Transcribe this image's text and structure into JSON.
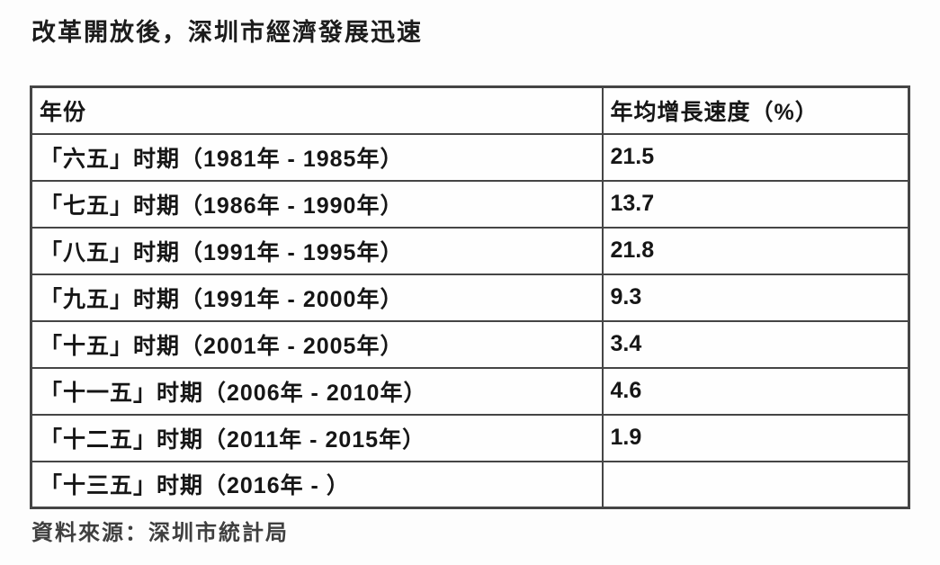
{
  "page": {
    "title": "改革開放後，深圳市經濟發展迅速",
    "source_note": "資料來源：深圳市統計局"
  },
  "table": {
    "headers": {
      "period": "年份",
      "growth": "年均增長速度（%）"
    },
    "rows": [
      {
        "period": "「六五」时期（1981年 - 1985年）",
        "value": "21.5"
      },
      {
        "period": "「七五」时期（1986年 - 1990年）",
        "value": "13.7"
      },
      {
        "period": "「八五」时期（1991年 - 1995年）",
        "value": "21.8"
      },
      {
        "period": "「九五」时期（1991年 - 2000年）",
        "value": "9.3"
      },
      {
        "period": "「十五」时期（2001年 - 2005年）",
        "value": "3.4"
      },
      {
        "period": "「十一五」时期（2006年 - 2010年）",
        "value": "4.6"
      },
      {
        "period": "「十二五」时期（2011年 - 2015年）",
        "value": "1.9"
      },
      {
        "period": "「十三五」时期（2016年 - ）",
        "value": ""
      }
    ]
  },
  "chart_data": {
    "type": "table",
    "title": "改革開放後，深圳市經濟發展迅速",
    "columns": [
      "年份",
      "年均增長速度（%）"
    ],
    "categories": [
      "「六五」时期（1981年 - 1985年）",
      "「七五」时期（1986年 - 1990年）",
      "「八五」时期（1991年 - 1995年）",
      "「九五」时期（1991年 - 2000年）",
      "「十五」时期（2001年 - 2005年）",
      "「十一五」时期（2006年 - 2010年）",
      "「十二五」时期（2011年 - 2015年）",
      "「十三五」时期（2016年 - ）"
    ],
    "values": [
      21.5,
      13.7,
      21.8,
      9.3,
      3.4,
      4.6,
      1.9,
      null
    ],
    "value_unit": "%",
    "source": "資料來源：深圳市統計局",
    "layout": {
      "border_color": "#454545",
      "background": "#fdfdfd",
      "text_color": "#161616"
    }
  }
}
